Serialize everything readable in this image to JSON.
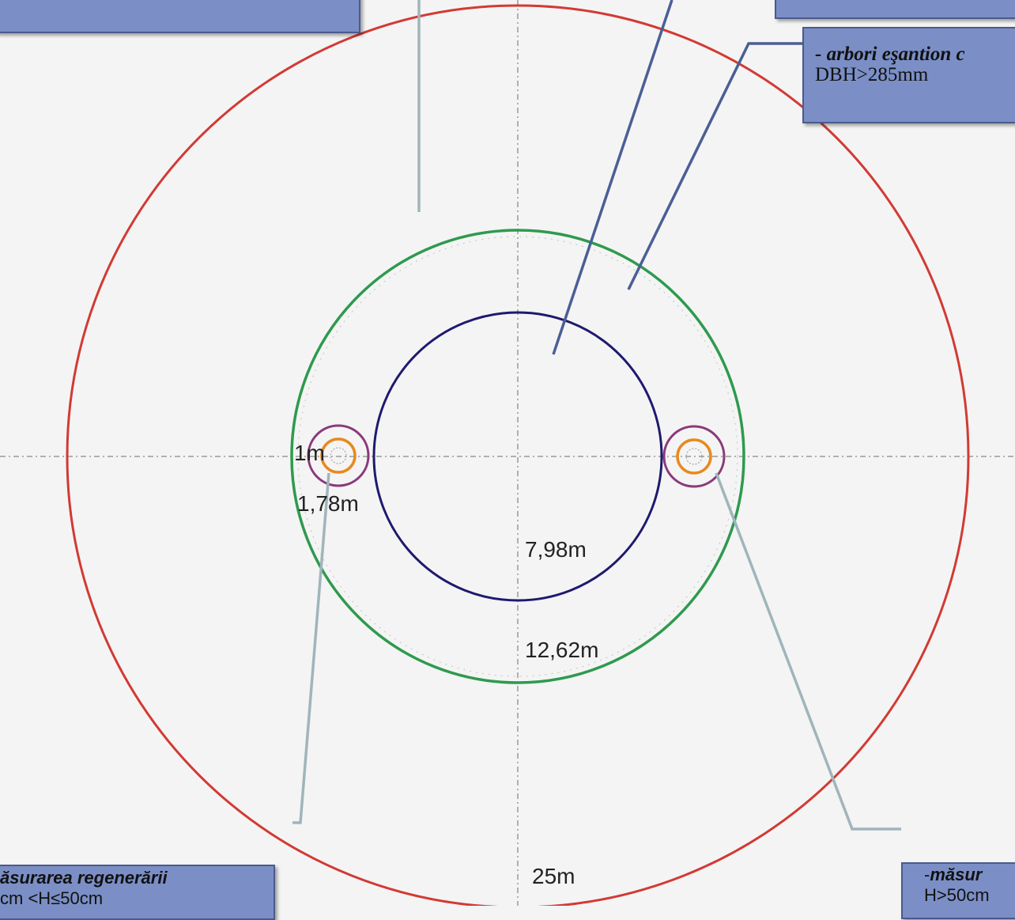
{
  "diagram": {
    "radius_labels": {
      "r1": "1m",
      "r178": "1,78m",
      "r798": "7,98m",
      "r1262": "12,62m",
      "r25": "25m"
    },
    "callouts": {
      "large_trees": {
        "title": "- arbori eşantion c",
        "detail": "DBH>285mm"
      },
      "regen_left": {
        "title": "ăsurarea regenerării",
        "detail": "cm <H≤50cm"
      },
      "regen_right": {
        "title_prefix": "-",
        "title": "măsur",
        "detail": "H>50cm"
      }
    },
    "colors": {
      "circle_25m": "#d23a34",
      "circle_12_62m": "#2e9a4e",
      "circle_7_98m": "#1e1a6e",
      "circle_1_78m": "#8a3a7a",
      "circle_1m": "#e8891e",
      "callout_fill": "#7b8fc6",
      "leader_dark": "#4a5f94",
      "leader_light": "#9fb5bb"
    }
  }
}
